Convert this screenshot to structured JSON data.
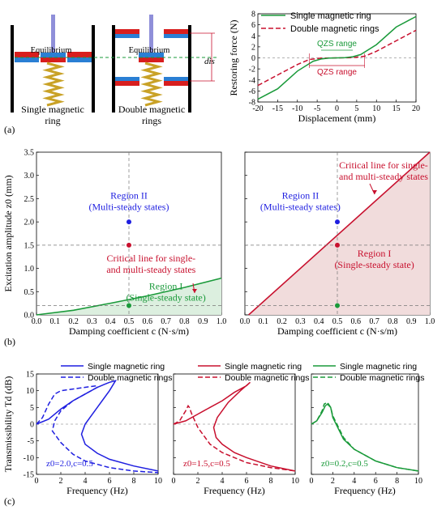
{
  "panel_labels": {
    "a": "(a)",
    "b": "(b)",
    "c": "(c)"
  },
  "schematic": {
    "single_label": [
      "Single magnetic",
      "ring"
    ],
    "double_label": [
      "Double magnetic",
      "rings"
    ],
    "equilibrium": "Equilibrium",
    "dis": "dis"
  },
  "colors": {
    "blue": "#1f1fe0",
    "red": "#c8102e",
    "green": "#1a9a3a",
    "black": "#000000",
    "grid": "#777777",
    "redFill": "#f1dcdc",
    "greenFill": "#dcefdf"
  },
  "chart_data": [
    {
      "id": "restoring-force",
      "type": "line",
      "xlabel": "Displacement (mm)",
      "ylabel": "Restoring force (N)",
      "xlim": [
        -20,
        20
      ],
      "ylim": [
        -8,
        8
      ],
      "xticks": [
        -20,
        -15,
        -10,
        -5,
        0,
        5,
        10,
        15,
        20
      ],
      "yticks": [
        -8,
        -6,
        -4,
        -2,
        0,
        2,
        4,
        6,
        8
      ],
      "series": [
        {
          "name": "Single magnetic ring",
          "x": [
            -20,
            -15,
            -10,
            -6,
            -4,
            -2,
            0,
            2,
            4,
            6,
            10,
            15,
            20
          ],
          "y": [
            -7.5,
            -5.6,
            -2.4,
            -0.6,
            -0.2,
            -0.05,
            0,
            0.05,
            0.2,
            0.6,
            2.4,
            5.6,
            7.5
          ]
        },
        {
          "name": "Double magnetic rings",
          "x": [
            -20,
            -15,
            -10,
            -7,
            -4,
            0,
            4,
            7,
            10,
            15,
            20
          ],
          "y": [
            -5,
            -3.1,
            -1.2,
            -0.3,
            -0.05,
            0,
            0.05,
            0.3,
            1.2,
            3.1,
            5
          ]
        }
      ],
      "annotations": [
        {
          "text": "QZS range",
          "range": [
            -4,
            4
          ]
        },
        {
          "text": "QZS range",
          "range": [
            -7,
            7
          ]
        }
      ]
    },
    {
      "id": "regions-single",
      "type": "line",
      "xlabel": "Damping coefficient c (N·s/m)",
      "ylabel": "Excitation amplitude z0 (mm)",
      "xlim": [
        0,
        1
      ],
      "ylim": [
        0,
        3.5
      ],
      "xticks": [
        0.0,
        0.1,
        0.2,
        0.3,
        0.4,
        0.5,
        0.6,
        0.7,
        0.8,
        0.9,
        1.0
      ],
      "yticks": [
        0.0,
        0.5,
        1.0,
        1.5,
        2.0,
        2.5,
        3.0,
        3.5
      ],
      "series": [
        {
          "name": "Critical line for single- and multi-steady states",
          "x": [
            0,
            0.2,
            0.4,
            0.6,
            0.8,
            1.0
          ],
          "y": [
            0,
            0.1,
            0.25,
            0.41,
            0.59,
            0.79
          ]
        }
      ],
      "points": [
        {
          "x": 0.5,
          "y": 2.0
        },
        {
          "x": 0.5,
          "y": 1.5
        },
        {
          "x": 0.5,
          "y": 0.2
        }
      ],
      "regions": [
        "Region II",
        "(Multi-steady states)",
        "Region I",
        "(Single-steady state)"
      ],
      "critical_label": [
        "Critical line for single-",
        "and multi-steady states"
      ]
    },
    {
      "id": "regions-double",
      "type": "line",
      "xlabel": "Damping coefficient c (N·s/m)",
      "xlim": [
        0,
        1
      ],
      "ylim": [
        0,
        3.5
      ],
      "xticks": [
        0.0,
        0.1,
        0.2,
        0.3,
        0.4,
        0.5,
        0.6,
        0.7,
        0.8,
        0.9,
        1.0
      ],
      "series": [
        {
          "name": "Critical line for single- and multi-steady states",
          "x": [
            0.02,
            1.0
          ],
          "y": [
            0,
            3.5
          ]
        }
      ],
      "points": [
        {
          "x": 0.5,
          "y": 2.0
        },
        {
          "x": 0.5,
          "y": 1.5
        },
        {
          "x": 0.5,
          "y": 0.2
        }
      ],
      "regions": [
        "Region II",
        "(Multi-steady states)",
        "Region I",
        "(Single-steady state)"
      ],
      "critical_label": [
        "Critical line for single-",
        "and multi-steady states"
      ]
    },
    {
      "id": "transmissibility",
      "type": "line",
      "xlabel": "Frequency (Hz)",
      "ylabel": "Transmissibility Td (dB)",
      "xlim": [
        0,
        10
      ],
      "ylim": [
        -15,
        15
      ],
      "xticks": [
        0,
        2,
        4,
        6,
        8,
        10
      ],
      "yticks": [
        -15,
        -10,
        -5,
        0,
        5,
        10,
        15
      ],
      "legend": [
        "Single magnetic ring",
        "Double magnetic rings"
      ],
      "subplots": [
        {
          "label": "z0=2.0,c=0.5",
          "single": {
            "x": [
              0,
              1,
              2,
              3,
              4,
              5,
              6,
              6.5,
              6,
              5,
              4,
              3.7,
              4,
              5,
              6,
              8,
              10
            ],
            "y": [
              0,
              1.5,
              4.5,
              7,
              9,
              11,
              12.5,
              13,
              10,
              5,
              0,
              -3,
              -6,
              -8.7,
              -10.5,
              -12.5,
              -14
            ]
          },
          "double": {
            "x": [
              0,
              0.5,
              1,
              1.5,
              2,
              3,
              4,
              5,
              5,
              4,
              3,
              2,
              1.5,
              1.3,
              2,
              3,
              4,
              6,
              8,
              10
            ],
            "y": [
              0,
              2,
              6,
              9,
              10,
              10.5,
              11,
              11.5,
              11,
              9,
              7,
              4,
              1,
              -2,
              -5.5,
              -9,
              -11,
              -13,
              -14,
              -14.5
            ]
          }
        },
        {
          "label": "z0=1.5,c=0.5",
          "single": {
            "x": [
              0,
              1,
              2,
              3,
              4,
              5,
              6,
              6.3,
              5.5,
              4.5,
              3.6,
              3.3,
              3.5,
              4,
              5,
              6,
              8,
              10
            ],
            "y": [
              0,
              1,
              3,
              5,
              7,
              9.5,
              11.5,
              12.5,
              10,
              6.5,
              2,
              -1,
              -4,
              -6,
              -8.5,
              -10,
              -12.5,
              -14
            ]
          },
          "double": {
            "x": [
              0,
              0.5,
              1,
              1.2,
              1.3,
              1.5,
              2,
              3,
              4,
              6,
              8,
              10
            ],
            "y": [
              0,
              1,
              4,
              5.5,
              5,
              3,
              -1,
              -6,
              -8.5,
              -11.5,
              -13,
              -14
            ]
          }
        },
        {
          "label": "z0=0.2,c=0.5",
          "single": {
            "x": [
              0,
              0.5,
              1,
              1.3,
              1.5,
              1.8,
              2,
              3,
              4,
              6,
              8,
              10
            ],
            "y": [
              0,
              1,
              3.5,
              5.5,
              6,
              5,
              2,
              -4.5,
              -7.5,
              -11,
              -13,
              -14
            ]
          },
          "double": {
            "x": [
              0,
              0.5,
              1,
              1.2,
              1.5,
              1.8,
              2,
              3,
              4,
              6,
              8,
              10
            ],
            "y": [
              0,
              1,
              4,
              6,
              6.5,
              5,
              2.5,
              -4,
              -7.5,
              -11,
              -13,
              -14
            ]
          }
        }
      ]
    }
  ]
}
